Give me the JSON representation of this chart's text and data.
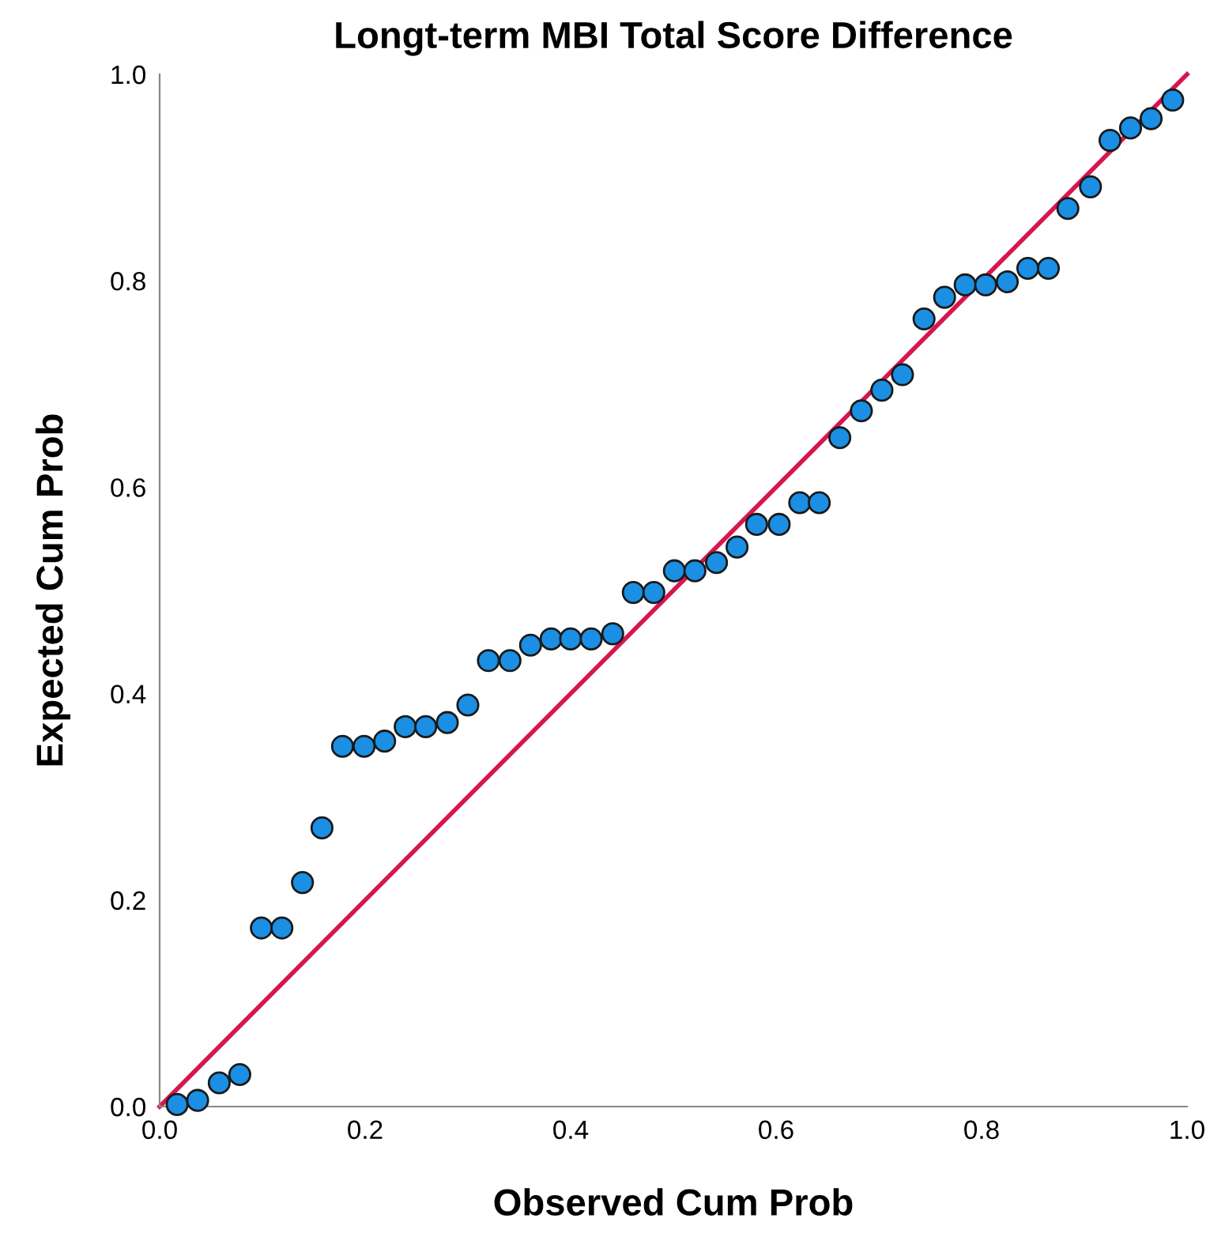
{
  "chart_data": {
    "type": "scatter",
    "title": "Longt-term MBI Total Score Difference",
    "xlabel": "Observed Cum Prob",
    "ylabel": "Expected Cum Prob",
    "xlim": [
      0,
      1
    ],
    "ylim": [
      0,
      1
    ],
    "xticks": [
      {
        "value": 0,
        "label": "0.0"
      },
      {
        "value": 0.2,
        "label": "0.2"
      },
      {
        "value": 0.4,
        "label": "0.4"
      },
      {
        "value": 0.6,
        "label": "0.6"
      },
      {
        "value": 0.8,
        "label": "0.8"
      },
      {
        "value": 1,
        "label": "1.0"
      }
    ],
    "yticks": [
      {
        "value": 0,
        "label": "0.0"
      },
      {
        "value": 0.2,
        "label": "0.2"
      },
      {
        "value": 0.4,
        "label": "0.4"
      },
      {
        "value": 0.6,
        "label": "0.6"
      },
      {
        "value": 0.8,
        "label": "0.8"
      },
      {
        "value": 1,
        "label": "1.0"
      }
    ],
    "grid": false,
    "legend": false,
    "marker": "circle",
    "series": [
      {
        "type": "line",
        "marker": "none",
        "color": "#d6164e",
        "x": [
          0,
          1
        ],
        "values": [
          0,
          1
        ]
      },
      {
        "color": "#1a8fe3",
        "x": [
          0.017,
          0.037,
          0.058,
          0.078,
          0.099,
          0.119,
          0.139,
          0.158,
          0.178,
          0.199,
          0.219,
          0.239,
          0.259,
          0.28,
          0.3,
          0.32,
          0.341,
          0.361,
          0.381,
          0.4,
          0.42,
          0.441,
          0.461,
          0.481,
          0.501,
          0.521,
          0.542,
          0.562,
          0.581,
          0.603,
          0.623,
          0.642,
          0.662,
          0.683,
          0.703,
          0.723,
          0.744,
          0.764,
          0.784,
          0.804,
          0.825,
          0.845,
          0.865,
          0.884,
          0.906,
          0.925,
          0.945,
          0.965,
          0.986
        ],
        "values": [
          0.002,
          0.006,
          0.023,
          0.031,
          0.173,
          0.173,
          0.217,
          0.27,
          0.349,
          0.349,
          0.354,
          0.368,
          0.368,
          0.372,
          0.389,
          0.432,
          0.432,
          0.447,
          0.453,
          0.453,
          0.453,
          0.458,
          0.498,
          0.498,
          0.519,
          0.519,
          0.527,
          0.542,
          0.564,
          0.564,
          0.585,
          0.585,
          0.648,
          0.674,
          0.694,
          0.709,
          0.763,
          0.784,
          0.796,
          0.796,
          0.799,
          0.812,
          0.812,
          0.87,
          0.891,
          0.936,
          0.948,
          0.957,
          0.975
        ]
      }
    ]
  }
}
